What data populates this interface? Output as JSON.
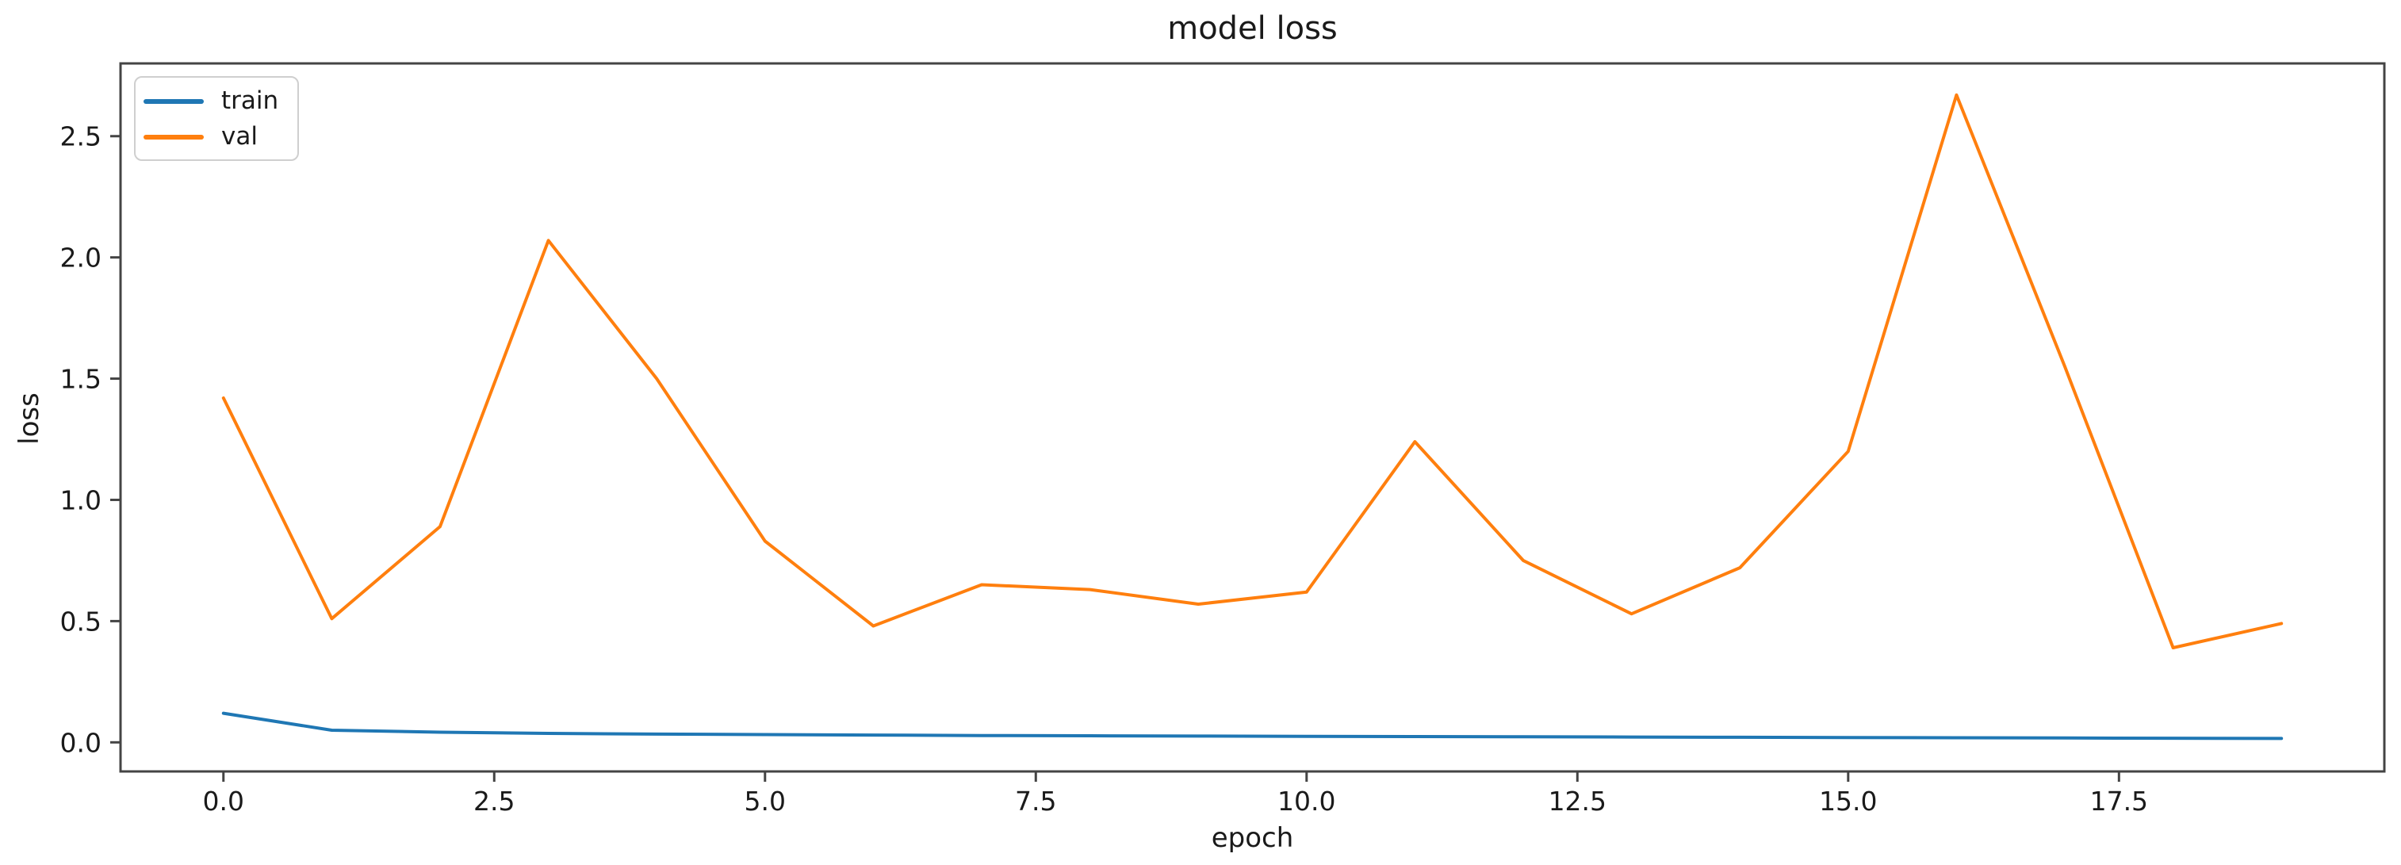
{
  "chart_data": {
    "type": "line",
    "title": "model loss",
    "xlabel": "epoch",
    "ylabel": "loss",
    "x": [
      0,
      1,
      2,
      3,
      4,
      5,
      6,
      7,
      8,
      9,
      10,
      11,
      12,
      13,
      14,
      15,
      16,
      17,
      18,
      19
    ],
    "series": [
      {
        "name": "train",
        "color": "#1f77b4",
        "values": [
          0.12,
          0.05,
          0.042,
          0.037,
          0.034,
          0.032,
          0.03,
          0.028,
          0.027,
          0.026,
          0.025,
          0.024,
          0.023,
          0.022,
          0.021,
          0.02,
          0.019,
          0.018,
          0.017,
          0.016
        ]
      },
      {
        "name": "val",
        "color": "#ff7f0e",
        "values": [
          1.42,
          0.51,
          0.89,
          2.07,
          1.5,
          0.83,
          0.48,
          0.65,
          0.63,
          0.57,
          0.62,
          1.24,
          0.75,
          0.53,
          0.72,
          1.2,
          2.67,
          1.55,
          0.39,
          0.49
        ]
      }
    ],
    "xlim": [
      -0.95,
      19.95
    ],
    "ylim": [
      -0.12,
      2.8
    ],
    "xticks": [
      0.0,
      2.5,
      5.0,
      7.5,
      10.0,
      12.5,
      15.0,
      17.5
    ],
    "yticks": [
      0.0,
      0.5,
      1.0,
      1.5,
      2.0,
      2.5
    ],
    "grid": false,
    "legend_position": "upper left",
    "legend_entries": [
      "train",
      "val"
    ]
  },
  "colors": {
    "axis": "#444444",
    "tick_text": "#1a1a1a",
    "background": "#ffffff",
    "legend_border": "#cfcfcf"
  }
}
